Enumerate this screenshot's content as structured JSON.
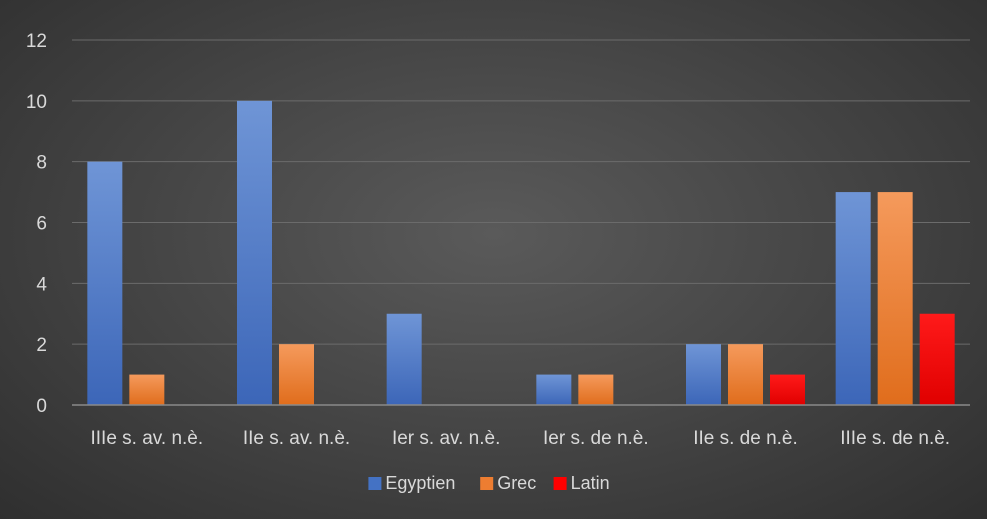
{
  "chart_data": {
    "type": "bar",
    "title": "",
    "xlabel": "",
    "ylabel": "",
    "categories": [
      "IIIe s. av. n.è.",
      "IIe s. av. n.è.",
      "Ier s. av. n.è.",
      "Ier s. de n.è.",
      "IIe s. de n.è.",
      "IIIe s. de n.è."
    ],
    "series": [
      {
        "name": "Egyptien",
        "values": [
          8,
          10,
          3,
          1,
          2,
          7
        ],
        "color": "#4472c4"
      },
      {
        "name": "Grec",
        "values": [
          1,
          2,
          0,
          1,
          2,
          7
        ],
        "color": "#ed7d31"
      },
      {
        "name": "Latin",
        "values": [
          0,
          0,
          0,
          0,
          1,
          3
        ],
        "color": "#ff0000"
      }
    ],
    "ylim": [
      0,
      12
    ],
    "yticks": [
      0,
      2,
      4,
      6,
      8,
      10,
      12
    ],
    "grid": true,
    "legend_position": "bottom"
  }
}
